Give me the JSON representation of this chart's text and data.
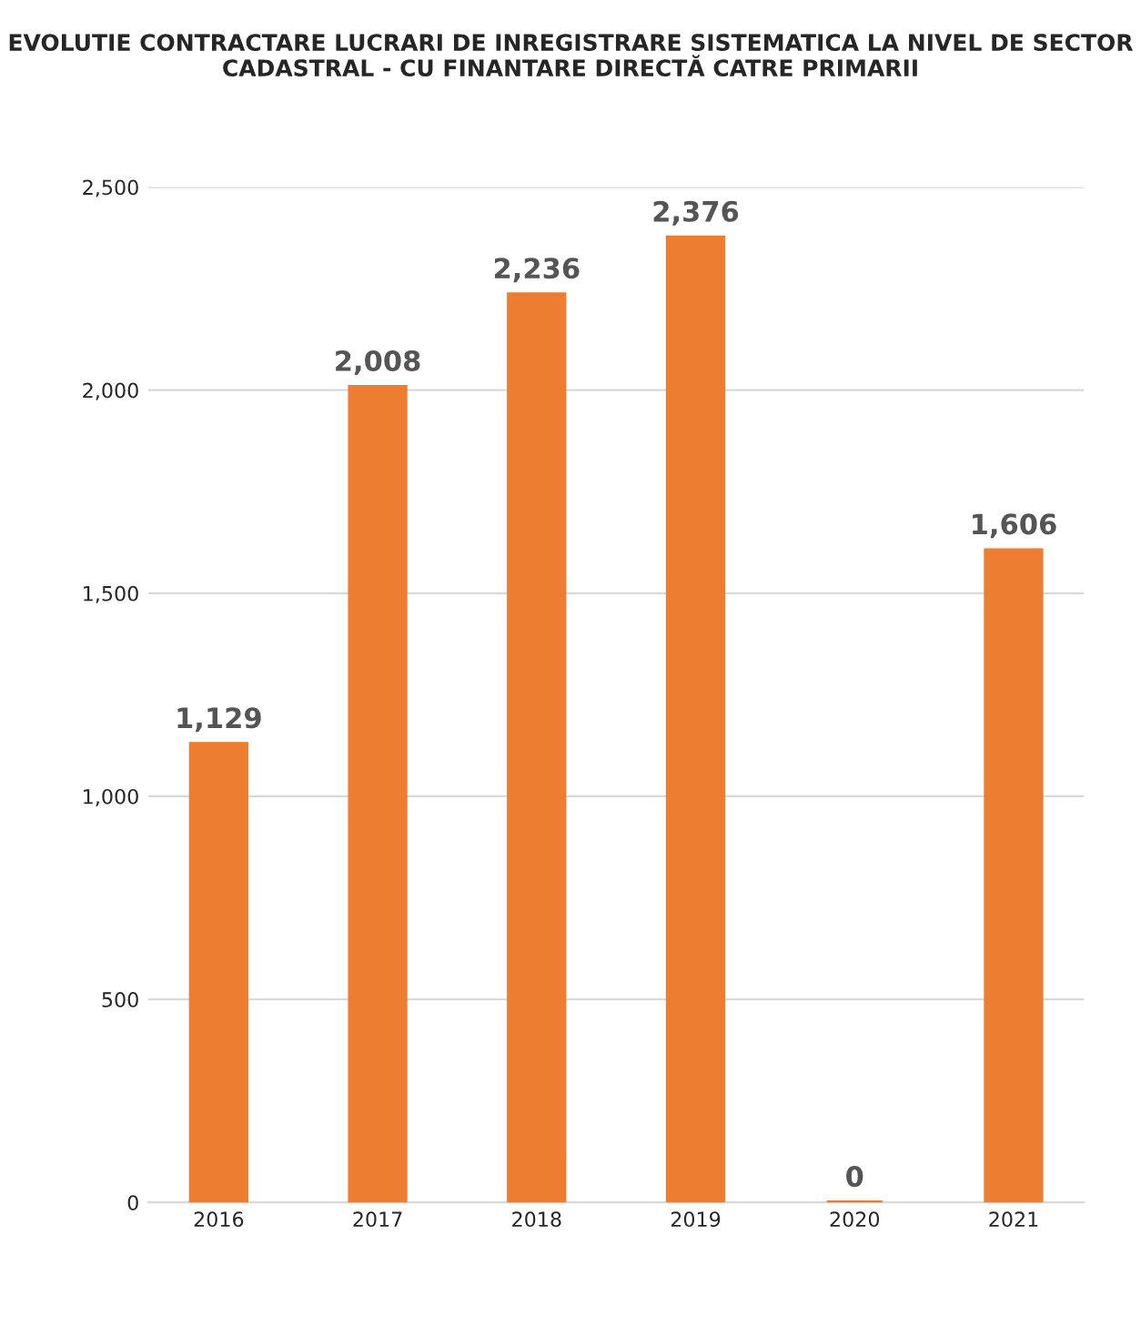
{
  "chart_data": {
    "type": "bar",
    "title": "EVOLUTIE CONTRACTARE LUCRARI DE INREGISTRARE SISTEMATICA LA NIVEL DE SECTOR CADASTRAL - CU FINANTARE DIRECTĂ CATRE PRIMARII",
    "categories": [
      "2016",
      "2017",
      "2018",
      "2019",
      "2020",
      "2021"
    ],
    "values": [
      1129,
      2008,
      2236,
      2376,
      0,
      1606
    ],
    "value_labels": [
      "1,129",
      "2,008",
      "2,236",
      "2,376",
      "0",
      "1,606"
    ],
    "color": "#ed7d31",
    "ylim": [
      0,
      2500
    ],
    "yticks": [
      {
        "value": 0,
        "label": "0"
      },
      {
        "value": 500,
        "label": "500"
      },
      {
        "value": 1000,
        "label": "1,000"
      },
      {
        "value": 1500,
        "label": "1,500"
      },
      {
        "value": 2000,
        "label": "2,000"
      },
      {
        "value": 2500,
        "label": "2,500"
      }
    ],
    "grid": "y"
  }
}
